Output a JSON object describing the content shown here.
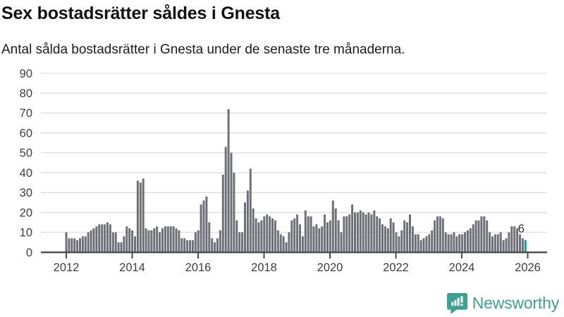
{
  "header": {
    "title": "Sex bostadsrätter såldes i Gnesta",
    "subtitle": "Antal sålda bostadsrätter i Gnesta under de senaste tre månaderna."
  },
  "chart_data": {
    "type": "bar",
    "title": "Sex bostadsrätter såldes i Gnesta",
    "subtitle": "Antal sålda bostadsrätter i Gnesta under de senaste tre månaderna.",
    "ylabel": "",
    "xlabel": "",
    "ylim": [
      0,
      90
    ],
    "y_ticks": [
      0,
      10,
      20,
      30,
      40,
      50,
      60,
      70,
      80,
      90
    ],
    "x_tick_labels": [
      "2012",
      "2014",
      "2016",
      "2018",
      "2020",
      "2022",
      "2024",
      "2026"
    ],
    "grid": true,
    "frequency": "monthly",
    "period_start": "2012-01",
    "period_end": "2025-12",
    "values": [
      10,
      7,
      7,
      7,
      6,
      7,
      8,
      8,
      10,
      11,
      12,
      13,
      14,
      14,
      14,
      15,
      14,
      10,
      10,
      5,
      5,
      8,
      13,
      12,
      11,
      8,
      36,
      35,
      37,
      12,
      11,
      11,
      12,
      13,
      10,
      12,
      13,
      13,
      13,
      13,
      12,
      11,
      7,
      7,
      6,
      6,
      6,
      10,
      11,
      24,
      26,
      28,
      15,
      7,
      5,
      7,
      11,
      39,
      53,
      72,
      50,
      40,
      16,
      10,
      10,
      25,
      31,
      42,
      22,
      17,
      15,
      16,
      18,
      19,
      18,
      17,
      16,
      11,
      9,
      8,
      5,
      10,
      16,
      17,
      19,
      14,
      8,
      21,
      18,
      18,
      13,
      14,
      12,
      13,
      19,
      15,
      16,
      26,
      22,
      16,
      10,
      18,
      18,
      19,
      24,
      20,
      20,
      21,
      20,
      19,
      20,
      19,
      21,
      18,
      17,
      14,
      13,
      12,
      17,
      15,
      10,
      8,
      11,
      16,
      15,
      19,
      13,
      9,
      9,
      6,
      7,
      8,
      9,
      11,
      16,
      18,
      18,
      17,
      10,
      9,
      9,
      10,
      8,
      9,
      9,
      10,
      11,
      12,
      14,
      16,
      16,
      18,
      18,
      16,
      10,
      8,
      9,
      9,
      10,
      6,
      7,
      10,
      13,
      13,
      12,
      9,
      7,
      6
    ],
    "highlight_last_bar": true,
    "last_value_label": "6",
    "colors": {
      "bar": "#6f6f78",
      "highlight": "#00a39b",
      "grid": "#dcdcdc",
      "axis": "#4d4d4d",
      "tick_text": "#3d3d3d",
      "label_text": "#333333"
    },
    "legend": null
  },
  "footer": {
    "brand": "Newsworthy",
    "brand_color": "#3aa28f"
  }
}
